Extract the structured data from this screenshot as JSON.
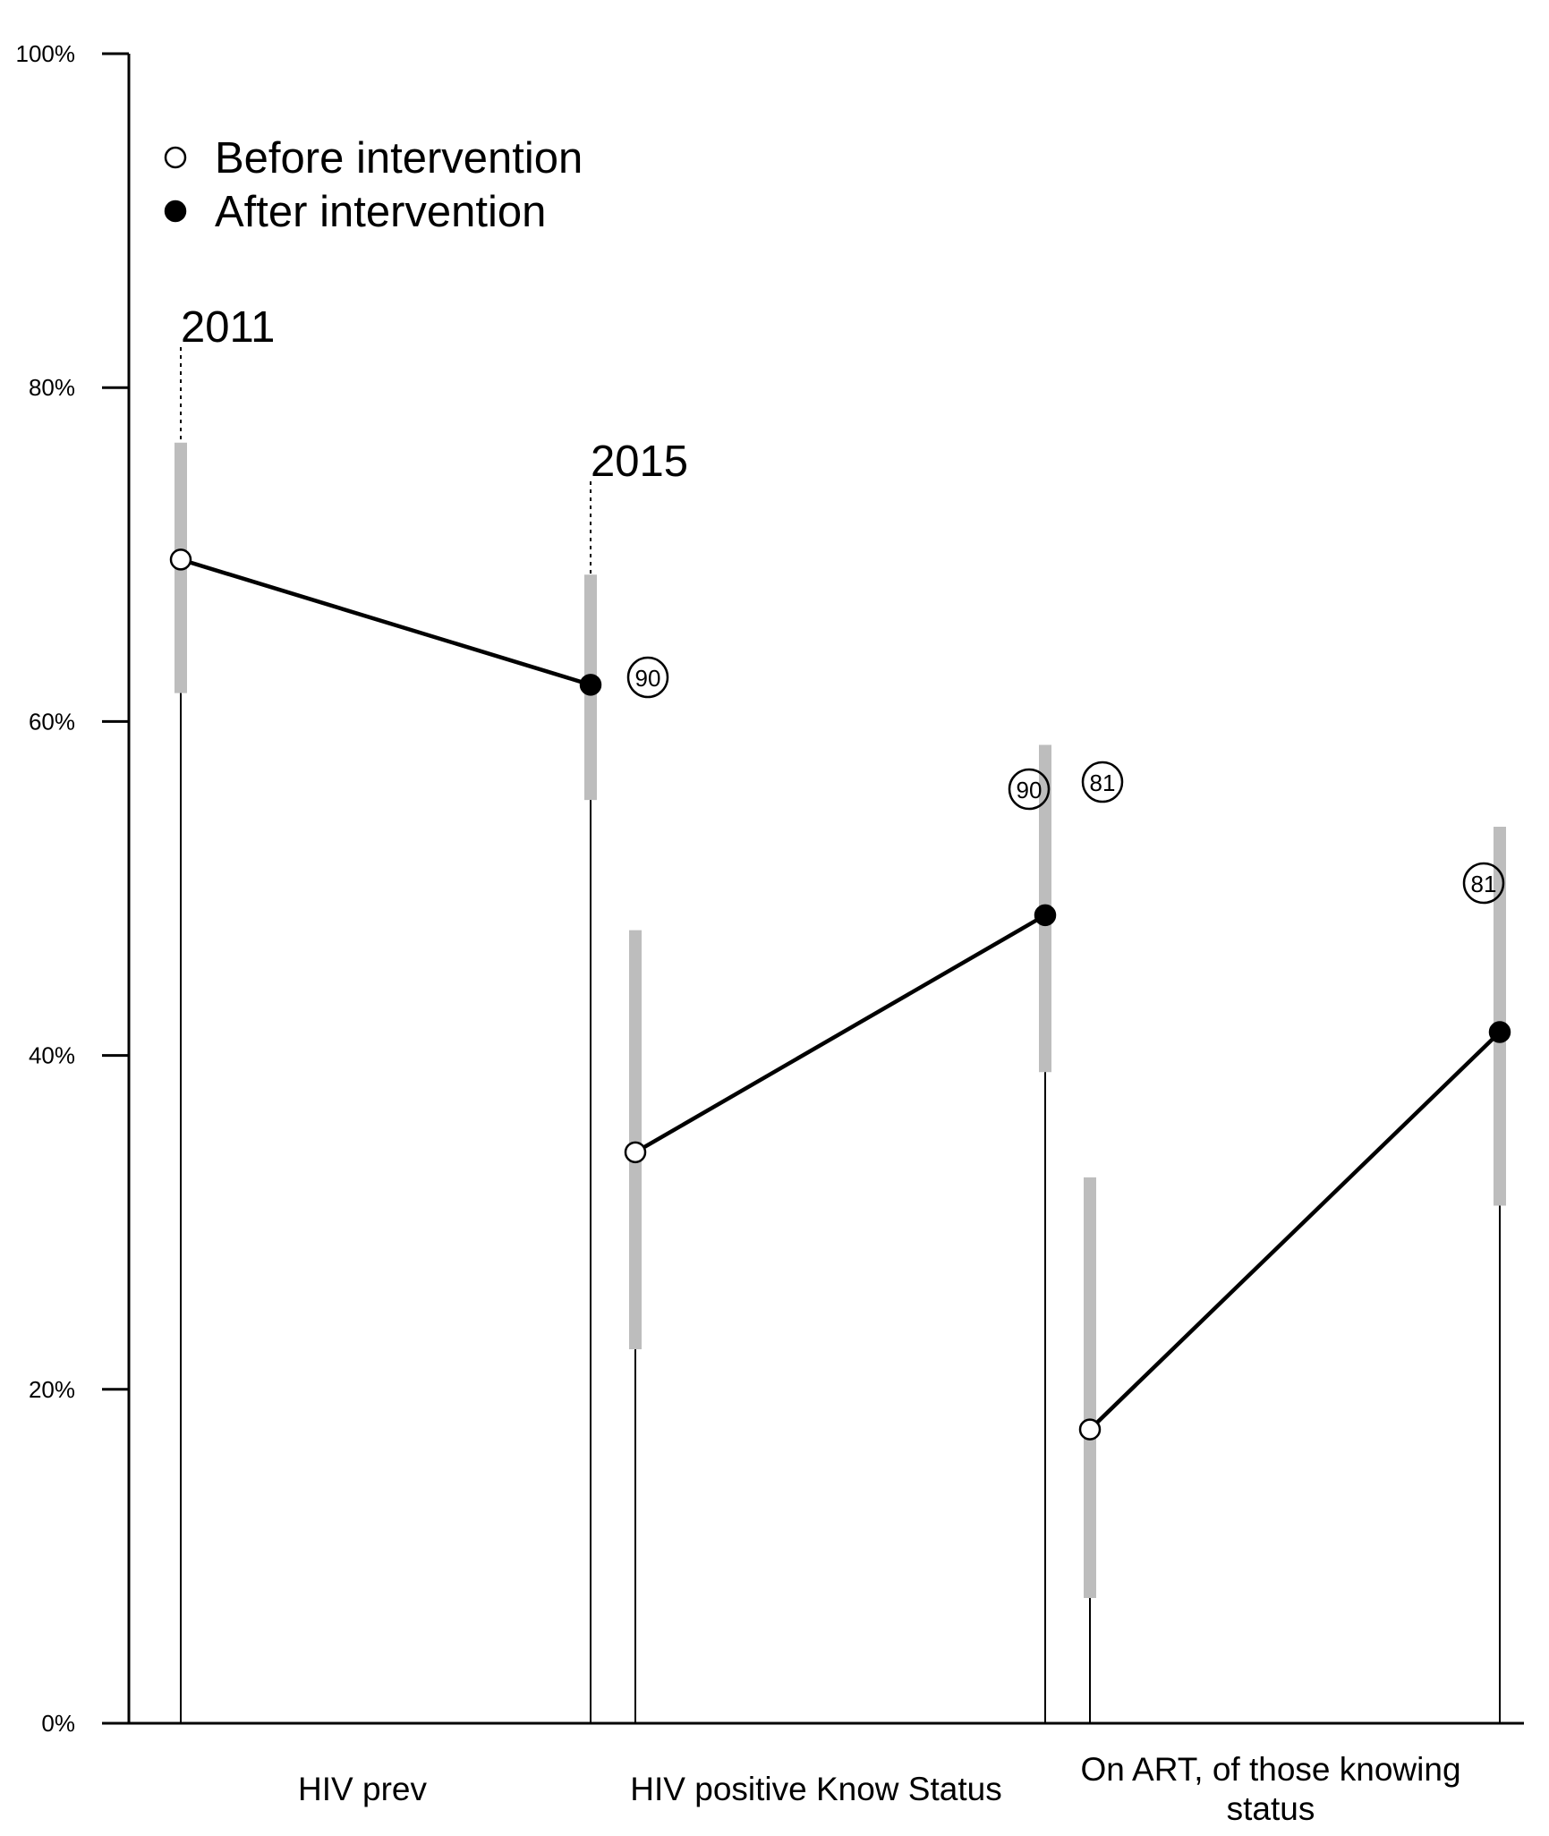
{
  "chart_data": {
    "type": "line",
    "title": "",
    "xlabel": "",
    "ylabel": "",
    "ylim": [
      0,
      100
    ],
    "y_ticks": [
      "0%",
      "20%",
      "40%",
      "60%",
      "80%",
      "100%"
    ],
    "grid": false,
    "legend_position": "top-left",
    "legend": [
      {
        "label": "Before intervention",
        "marker": "open-circle"
      },
      {
        "label": "After intervention",
        "marker": "filled-circle"
      }
    ],
    "categories": [
      "HIV prev",
      "HIV positive Know Status",
      "On ART, of those knowing status"
    ],
    "groups": [
      {
        "category": "HIV prev",
        "before": {
          "value": 69.7,
          "ci": [
            61.7,
            76.7
          ]
        },
        "after": {
          "value": 62.2,
          "ci": [
            55.3,
            68.8
          ]
        },
        "target": "90"
      },
      {
        "category": "HIV positive Know Status",
        "before": {
          "value": 34.2,
          "ci": [
            22.4,
            47.5
          ]
        },
        "after": {
          "value": 48.4,
          "ci": [
            39.0,
            58.6
          ]
        },
        "target": "90"
      },
      {
        "category": "On ART, of those knowing status",
        "before": {
          "value": 17.6,
          "ci": [
            7.5,
            32.7
          ]
        },
        "after": {
          "value": 41.4,
          "ci": [
            31.0,
            53.7
          ]
        },
        "target": "81"
      }
    ],
    "extra_target": "81",
    "annotations": [
      "2011",
      "2015"
    ],
    "colors": {
      "line": "#000000",
      "ci": "#bdbdbd",
      "open_fill": "#ffffff",
      "filled": "#000000"
    }
  }
}
